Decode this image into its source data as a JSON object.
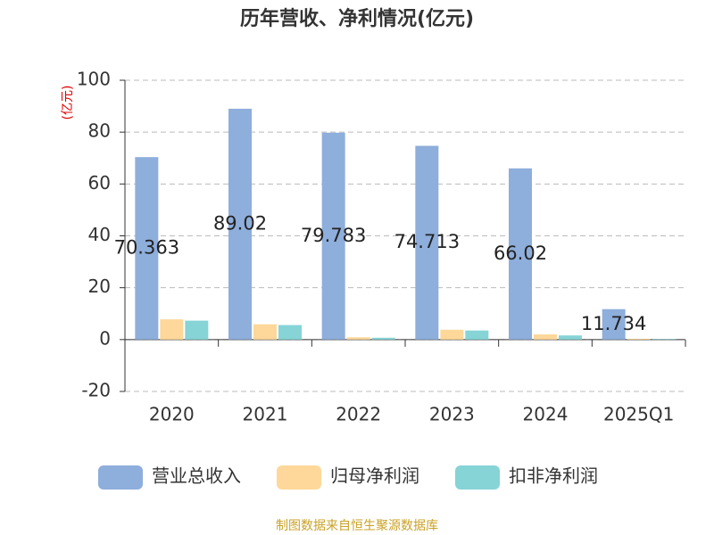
{
  "chart_data": {
    "type": "bar",
    "title": "历年营收、净利情况(亿元)",
    "y_label": "(亿元)",
    "categories": [
      "2020",
      "2021",
      "2022",
      "2023",
      "2024",
      "2025Q1"
    ],
    "series": [
      {
        "name": "营业总收入",
        "color": "#8eaedb",
        "values": [
          70.363,
          89.02,
          79.783,
          74.713,
          66.02,
          11.734
        ],
        "show_labels": true
      },
      {
        "name": "归母净利润",
        "color": "#fdd89a",
        "values": [
          7.8,
          5.9,
          0.9,
          3.8,
          2.0,
          0.3
        ],
        "show_labels": false
      },
      {
        "name": "扣非净利润",
        "color": "#86d4d6",
        "values": [
          7.3,
          5.6,
          0.7,
          3.5,
          1.6,
          0.2
        ],
        "show_labels": false
      }
    ],
    "ylim": [
      -20,
      100
    ],
    "yticks": [
      100,
      80,
      60,
      40,
      20,
      0,
      -20
    ],
    "grid": true,
    "source": "制图数据来自恒生聚源数据库"
  }
}
